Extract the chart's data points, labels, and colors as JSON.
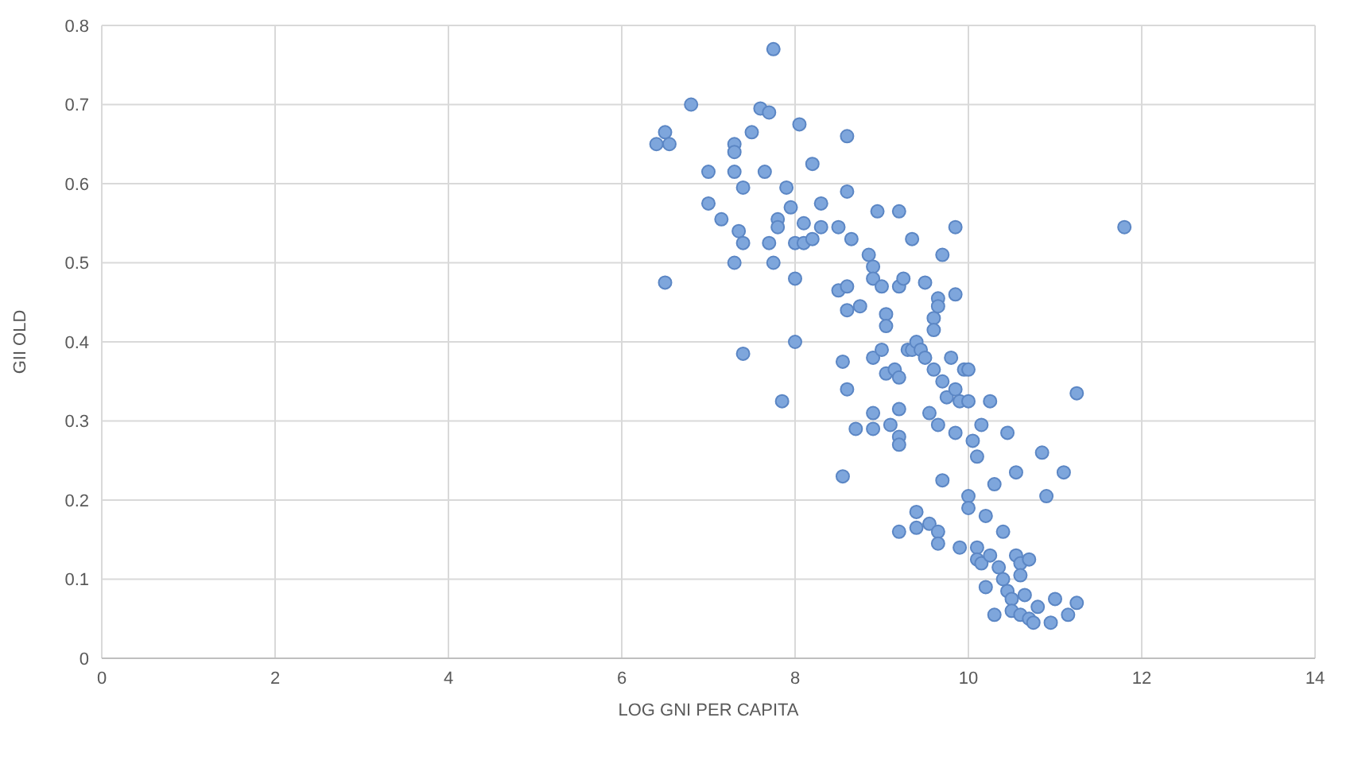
{
  "chart_data": {
    "type": "scatter",
    "xlabel": "LOG GNI PER CAPITA",
    "ylabel": "GII OLD",
    "xlim": [
      0,
      14
    ],
    "xticks": [
      0,
      2,
      4,
      6,
      8,
      10,
      12,
      14
    ],
    "ylim": [
      0,
      0.8
    ],
    "yticks": [
      0,
      0.1,
      0.2,
      0.3,
      0.4,
      0.5,
      0.6,
      0.7,
      0.8
    ],
    "grid": true,
    "legend": false,
    "marker": "circle",
    "series": [
      {
        "color": "#7ea6dc",
        "x": [
          6.4,
          6.5,
          6.55,
          6.8,
          6.5,
          7.0,
          7.0,
          7.15,
          7.3,
          7.3,
          7.3,
          7.35,
          7.3,
          7.4,
          7.4,
          7.4,
          7.5,
          7.6,
          7.65,
          7.7,
          7.75,
          7.7,
          7.75,
          7.8,
          7.8,
          7.85,
          7.9,
          7.95,
          8.0,
          8.0,
          8.0,
          8.05,
          8.1,
          8.1,
          8.2,
          8.2,
          8.3,
          8.3,
          8.5,
          8.5,
          8.55,
          8.55,
          8.6,
          8.6,
          8.6,
          8.6,
          8.6,
          8.65,
          8.7,
          8.75,
          8.85,
          8.9,
          8.9,
          8.95,
          8.9,
          8.9,
          8.9,
          9.0,
          9.0,
          9.05,
          9.05,
          9.05,
          9.1,
          9.15,
          9.2,
          9.2,
          9.25,
          9.2,
          9.2,
          9.2,
          9.2,
          9.2,
          9.3,
          9.35,
          9.35,
          9.4,
          9.45,
          9.4,
          9.4,
          9.5,
          9.5,
          9.55,
          9.55,
          9.6,
          9.6,
          9.65,
          9.65,
          9.6,
          9.65,
          9.65,
          9.65,
          9.7,
          9.7,
          9.75,
          9.7,
          9.8,
          9.85,
          9.85,
          9.85,
          9.85,
          9.9,
          9.9,
          9.95,
          10.0,
          10.0,
          10.0,
          10.0,
          10.05,
          10.1,
          10.1,
          10.1,
          10.15,
          10.15,
          10.2,
          10.2,
          10.25,
          10.25,
          10.3,
          10.3,
          10.35,
          10.4,
          10.4,
          10.45,
          10.45,
          10.5,
          10.5,
          10.55,
          10.55,
          10.6,
          10.6,
          10.6,
          10.65,
          10.7,
          10.7,
          10.75,
          10.8,
          10.85,
          10.9,
          10.95,
          11.0,
          11.1,
          11.15,
          11.25,
          11.25,
          11.8
        ],
        "values": [
          0.65,
          0.665,
          0.65,
          0.7,
          0.475,
          0.615,
          0.575,
          0.555,
          0.65,
          0.64,
          0.615,
          0.54,
          0.5,
          0.595,
          0.525,
          0.385,
          0.665,
          0.695,
          0.615,
          0.69,
          0.77,
          0.525,
          0.5,
          0.555,
          0.545,
          0.325,
          0.595,
          0.57,
          0.525,
          0.48,
          0.4,
          0.675,
          0.55,
          0.525,
          0.53,
          0.625,
          0.575,
          0.545,
          0.465,
          0.545,
          0.375,
          0.23,
          0.66,
          0.59,
          0.47,
          0.44,
          0.34,
          0.53,
          0.29,
          0.445,
          0.51,
          0.495,
          0.48,
          0.565,
          0.38,
          0.31,
          0.29,
          0.39,
          0.47,
          0.435,
          0.42,
          0.36,
          0.295,
          0.365,
          0.565,
          0.47,
          0.48,
          0.355,
          0.315,
          0.28,
          0.27,
          0.16,
          0.39,
          0.53,
          0.39,
          0.4,
          0.39,
          0.185,
          0.165,
          0.475,
          0.38,
          0.17,
          0.31,
          0.43,
          0.415,
          0.455,
          0.445,
          0.365,
          0.295,
          0.16,
          0.145,
          0.51,
          0.35,
          0.33,
          0.225,
          0.38,
          0.545,
          0.46,
          0.34,
          0.285,
          0.325,
          0.14,
          0.365,
          0.365,
          0.325,
          0.205,
          0.19,
          0.275,
          0.255,
          0.14,
          0.125,
          0.295,
          0.12,
          0.09,
          0.18,
          0.325,
          0.13,
          0.22,
          0.055,
          0.115,
          0.16,
          0.1,
          0.285,
          0.085,
          0.075,
          0.06,
          0.235,
          0.13,
          0.12,
          0.105,
          0.055,
          0.08,
          0.125,
          0.05,
          0.045,
          0.065,
          0.26,
          0.205,
          0.045,
          0.075,
          0.235,
          0.055,
          0.335,
          0.07,
          0.545
        ]
      }
    ]
  }
}
